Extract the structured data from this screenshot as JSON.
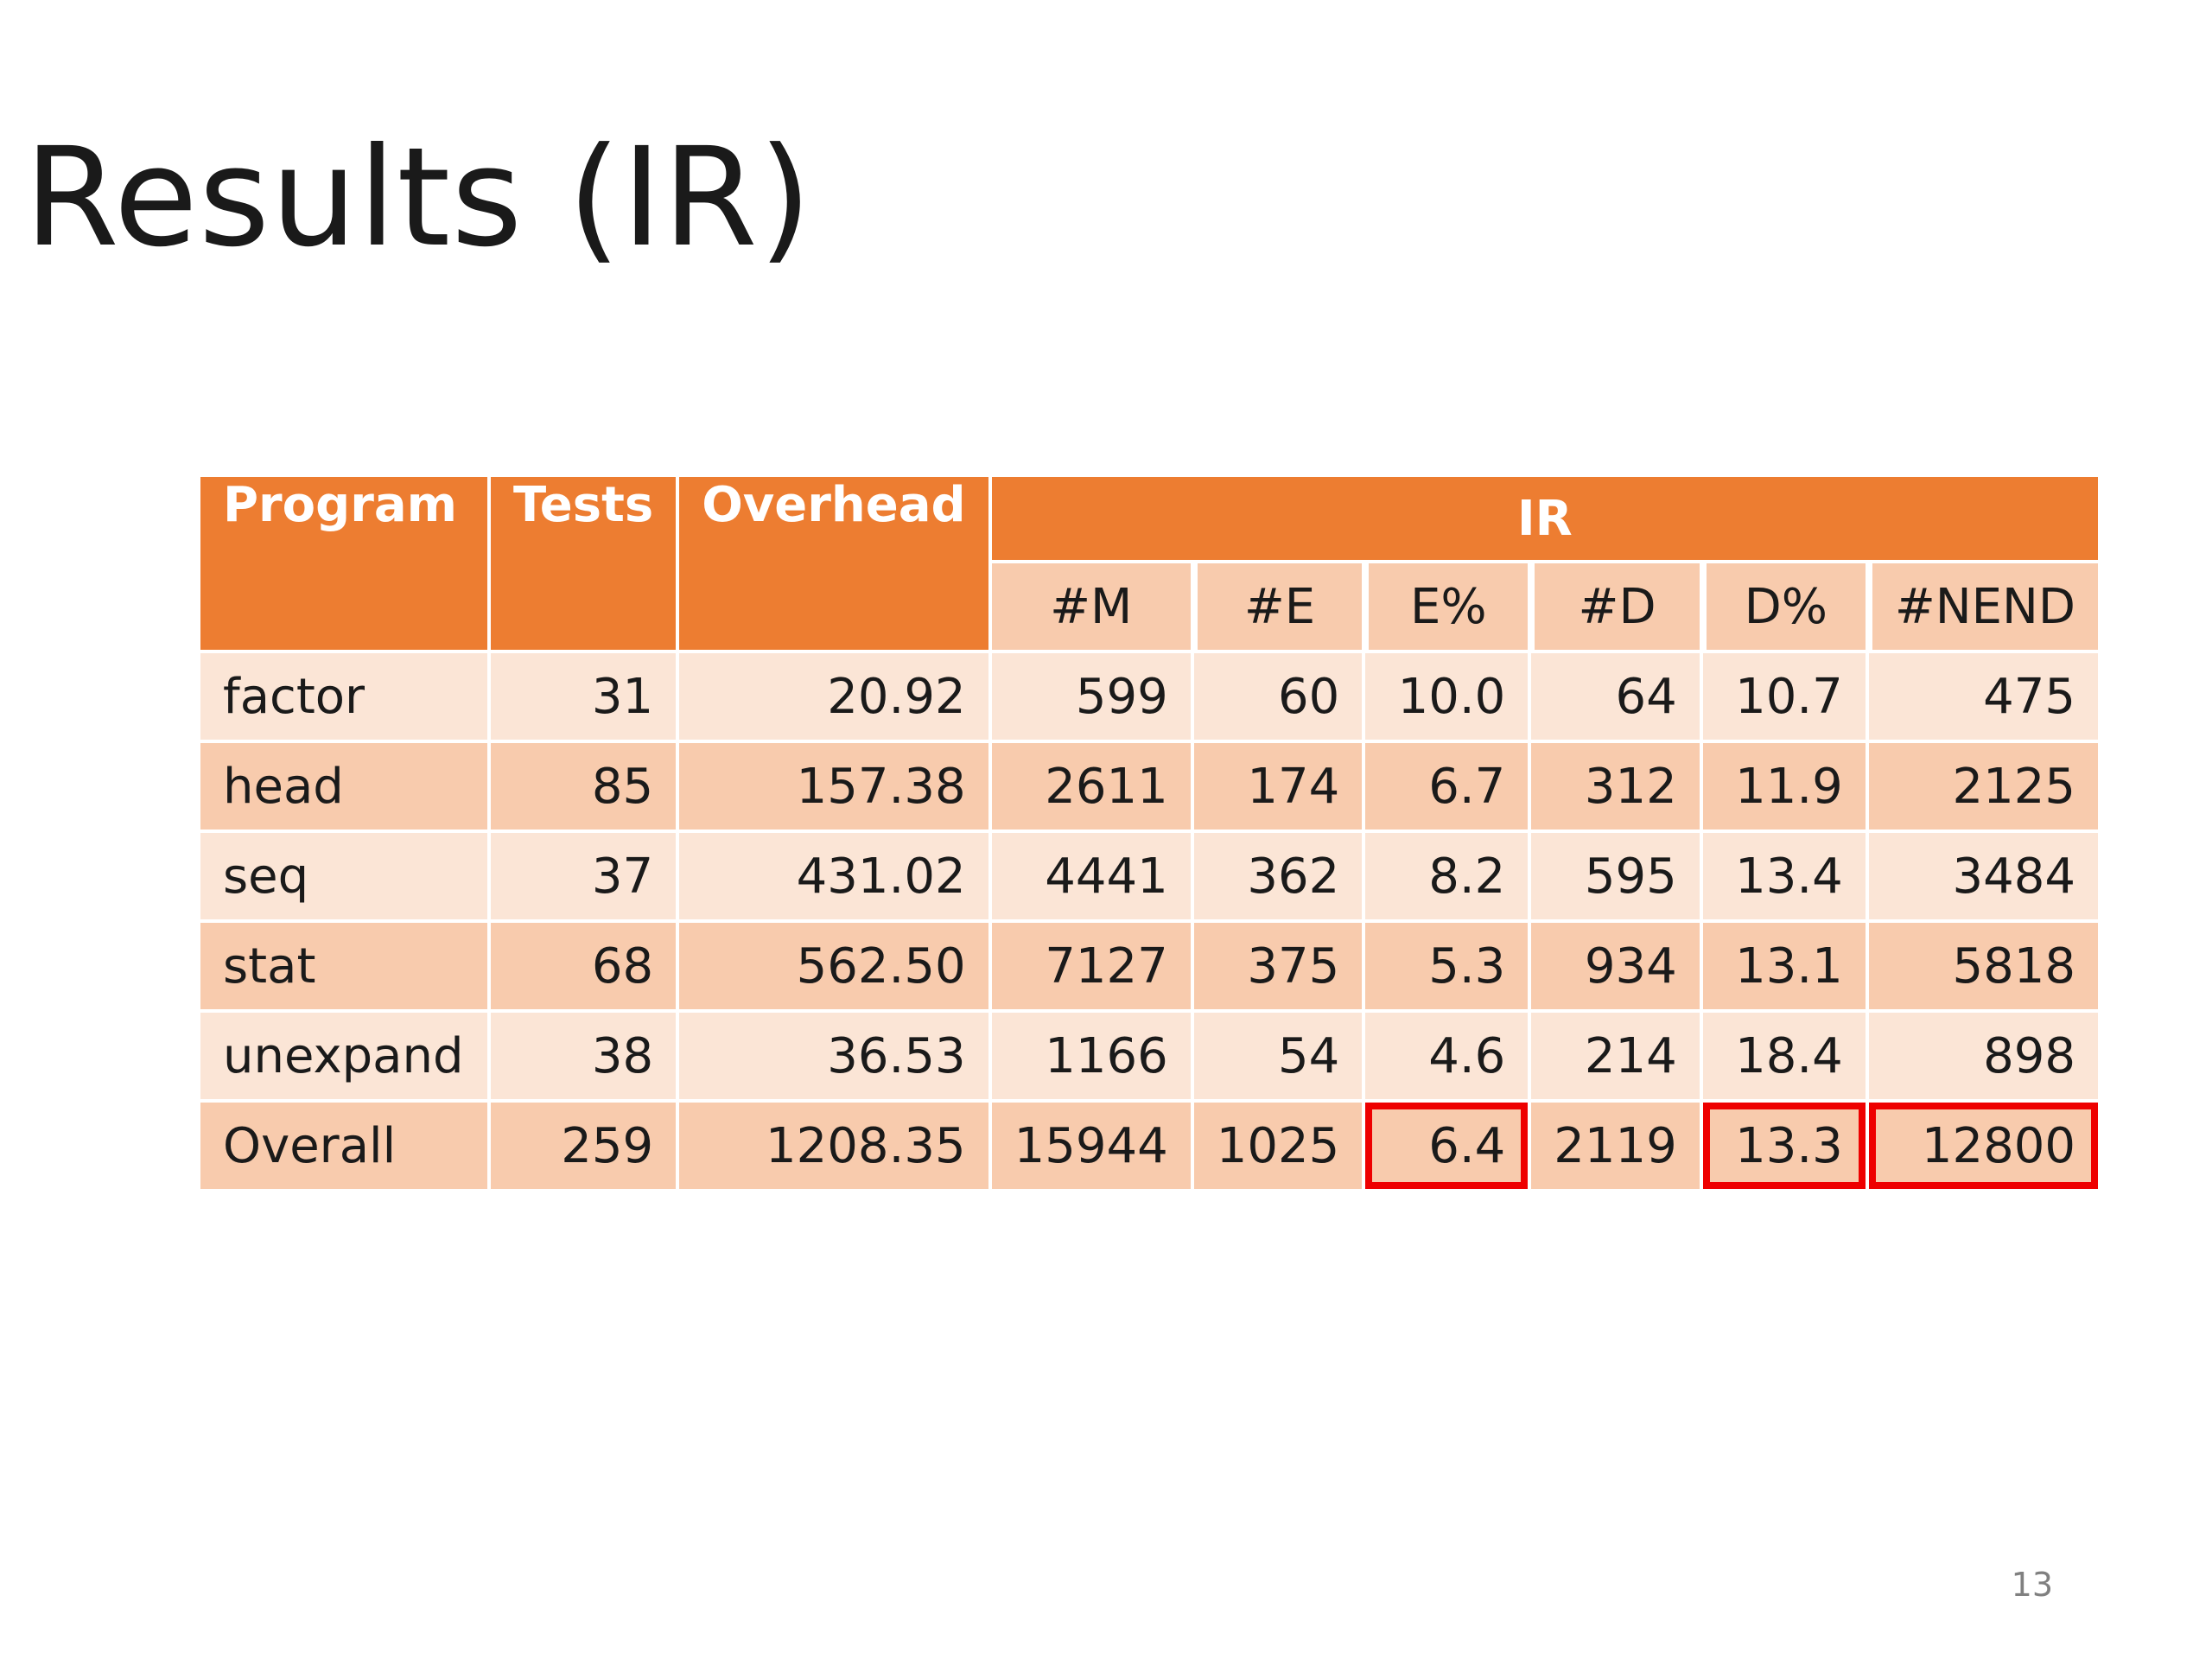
{
  "slide": {
    "title": "Results (IR)",
    "page_number": "13"
  },
  "table": {
    "headers": {
      "program": "Program",
      "tests": "Tests",
      "overhead": "Overhead",
      "group": "IR",
      "sub": [
        "#M",
        "#E",
        "E%",
        "#D",
        "D%",
        "#NEND"
      ]
    },
    "rows": [
      {
        "program": "factor",
        "tests": "31",
        "overhead": "20.92",
        "m": "599",
        "e": "60",
        "e_pct": "10.0",
        "d": "64",
        "d_pct": "10.7",
        "nend": "475"
      },
      {
        "program": "head",
        "tests": "85",
        "overhead": "157.38",
        "m": "2611",
        "e": "174",
        "e_pct": "6.7",
        "d": "312",
        "d_pct": "11.9",
        "nend": "2125"
      },
      {
        "program": "seq",
        "tests": "37",
        "overhead": "431.02",
        "m": "4441",
        "e": "362",
        "e_pct": "8.2",
        "d": "595",
        "d_pct": "13.4",
        "nend": "3484"
      },
      {
        "program": "stat",
        "tests": "68",
        "overhead": "562.50",
        "m": "7127",
        "e": "375",
        "e_pct": "5.3",
        "d": "934",
        "d_pct": "13.1",
        "nend": "5818"
      },
      {
        "program": "unexpand",
        "tests": "38",
        "overhead": "36.53",
        "m": "1166",
        "e": "54",
        "e_pct": "4.6",
        "d": "214",
        "d_pct": "18.4",
        "nend": "898"
      },
      {
        "program": "Overall",
        "tests": "259",
        "overhead": "1208.35",
        "m": "15944",
        "e": "1025",
        "e_pct": "6.4",
        "d": "2119",
        "d_pct": "13.3",
        "nend": "12800"
      }
    ],
    "highlighted_cells": [
      "Overall.e_pct",
      "Overall.d_pct",
      "Overall.nend"
    ],
    "colors": {
      "header": "#ed7d31",
      "row_light": "#fbe5d6",
      "row_dark": "#f8cbad",
      "highlight_border": "#ee0000"
    }
  }
}
